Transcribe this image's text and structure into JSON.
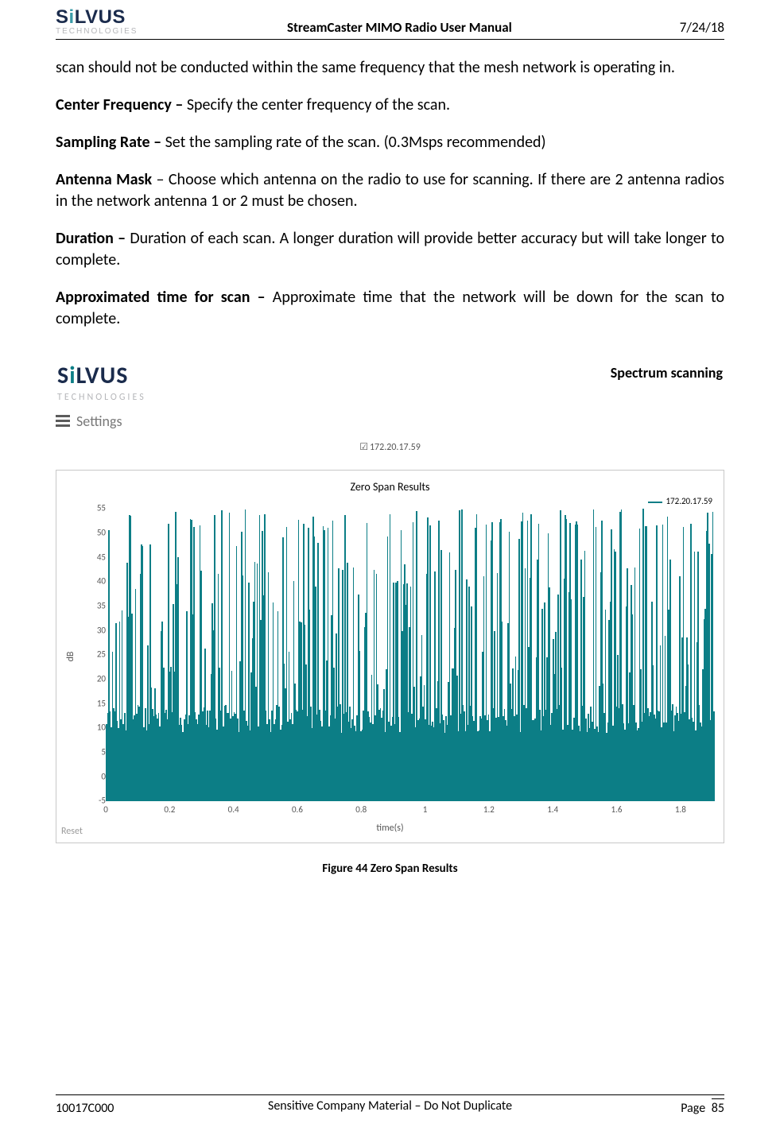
{
  "header": {
    "logo_main": "SiLVUS",
    "logo_sub": "TECHNOLOGIES",
    "title": "StreamCaster MIMO Radio User Manual",
    "date": "7/24/18"
  },
  "body": {
    "intro": "scan should not be conducted within the same frequency that the mesh network is operating in.",
    "items": [
      {
        "label": "Center Frequency – ",
        "text": "Specify the center frequency of the scan."
      },
      {
        "label": "Sampling Rate – ",
        "text": "Set the sampling rate of the scan. (0.3Msps recommended)"
      },
      {
        "label": "Antenna Mask",
        "sep": " – ",
        "text": "Choose which antenna on the radio to use for scanning. If there are 2 antenna radios in the network antenna 1 or 2 must be chosen."
      },
      {
        "label": "Duration – ",
        "text": "Duration of each scan. A longer duration will provide better accuracy but will take longer to complete."
      },
      {
        "label": "Approximated time for scan – ",
        "text": "Approximate time that the network will be down for the scan to complete."
      }
    ]
  },
  "screenshot": {
    "logo_main": "SiLVUS",
    "logo_sub": "TECHNOLOGIES",
    "page_title": "Spectrum scanning",
    "settings_label": "Settings",
    "ip_checked": true,
    "ip_label": "172.20.17.59",
    "chart": {
      "title": "Zero Span Results",
      "legend_label": "172.20.17.59",
      "legend_color": "#0c7e86",
      "series_color": "#0c7e86",
      "y_label": "dB",
      "x_label": "time(s)",
      "y_min": -5,
      "y_max": 55,
      "y_ticks": [
        -5,
        0,
        5,
        10,
        15,
        20,
        25,
        30,
        35,
        40,
        45,
        50,
        55
      ],
      "x_min": 0,
      "x_max": 1.9,
      "x_ticks": [
        0,
        0.2,
        0.4,
        0.6,
        0.8,
        1,
        1.2,
        1.4,
        1.6,
        1.8
      ],
      "reset_label": "Reset",
      "background": "#ffffff",
      "num_bars": 500,
      "base_db": 12,
      "peak_db_low": 18,
      "peak_db_high": 55,
      "peak_probability": 0.45
    },
    "caption": "Figure 44 Zero Span Results"
  },
  "footer": {
    "doc_id": "10017C000",
    "center": "Sensitive Company Material – Do Not Duplicate",
    "page_label": "Page",
    "page_number": "85"
  }
}
